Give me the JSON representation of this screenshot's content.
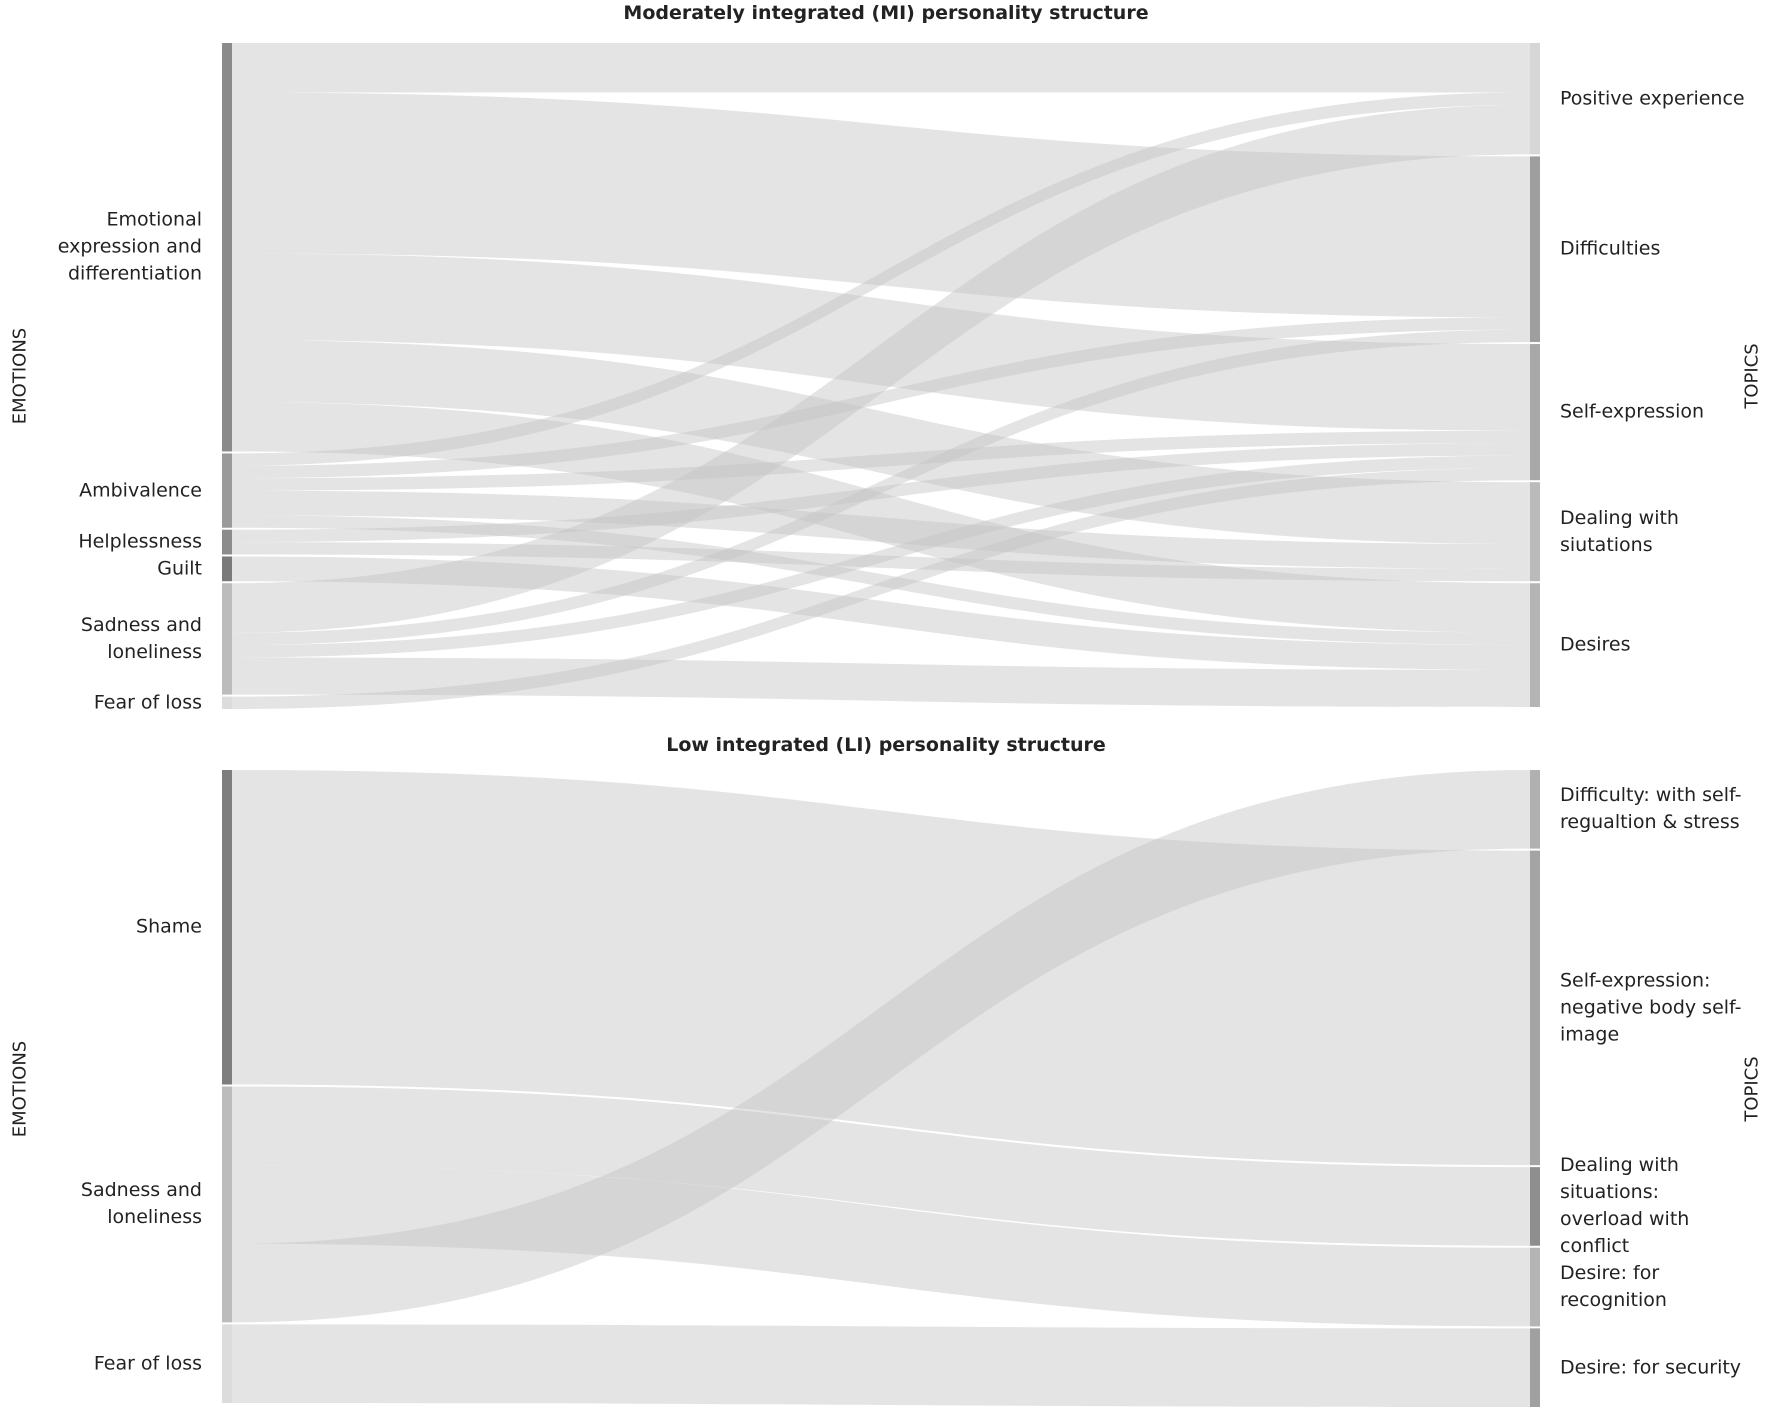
{
  "chart_data": [
    {
      "type": "sankey",
      "title": "Moderately integrated (MI) personality structure",
      "left_axis_label": "EMOTIONS",
      "right_axis_label": "TOPICS",
      "link_color": "#c4c4c4",
      "link_opacity": 0.45,
      "sources": [
        {
          "name": "Emotional expression and differentiation",
          "color": "#8a8a8a"
        },
        {
          "name": "Ambivalence",
          "color": "#9a9a9a"
        },
        {
          "name": "Helplessness",
          "color": "#8c8c8c"
        },
        {
          "name": "Guilt",
          "color": "#7a7a7a"
        },
        {
          "name": "Sadness and loneliness",
          "color": "#bcbcbc"
        },
        {
          "name": "Fear of loss",
          "color": "#dcdcdc"
        }
      ],
      "targets": [
        {
          "name": "Positive experience",
          "color": "#d6d6d6"
        },
        {
          "name": "Difficulties",
          "color": "#9e9e9e"
        },
        {
          "name": "Self-expression",
          "color": "#a8a8a8"
        },
        {
          "name": "Dealing with siutations",
          "color": "#bababa"
        },
        {
          "name": "Desires",
          "color": "#b4b4b4"
        }
      ],
      "links": [
        {
          "source": 0,
          "target": 0,
          "value": 4
        },
        {
          "source": 0,
          "target": 1,
          "value": 13
        },
        {
          "source": 0,
          "target": 2,
          "value": 7
        },
        {
          "source": 0,
          "target": 3,
          "value": 5
        },
        {
          "source": 0,
          "target": 4,
          "value": 4
        },
        {
          "source": 1,
          "target": 0,
          "value": 1
        },
        {
          "source": 1,
          "target": 1,
          "value": 1
        },
        {
          "source": 1,
          "target": 2,
          "value": 1
        },
        {
          "source": 1,
          "target": 3,
          "value": 2
        },
        {
          "source": 1,
          "target": 4,
          "value": 1
        },
        {
          "source": 2,
          "target": 2,
          "value": 1
        },
        {
          "source": 2,
          "target": 3,
          "value": 1
        },
        {
          "source": 3,
          "target": 4,
          "value": 2
        },
        {
          "source": 4,
          "target": 0,
          "value": 4
        },
        {
          "source": 4,
          "target": 1,
          "value": 1
        },
        {
          "source": 4,
          "target": 2,
          "value": 1
        },
        {
          "source": 4,
          "target": 4,
          "value": 3
        },
        {
          "source": 5,
          "target": 2,
          "value": 1
        }
      ]
    },
    {
      "type": "sankey",
      "title": "Low integrated (LI) personality structure",
      "left_axis_label": "EMOTIONS",
      "right_axis_label": "TOPICS",
      "link_color": "#c4c4c4",
      "link_opacity": 0.45,
      "sources": [
        {
          "name": "Shame",
          "color": "#7e7e7e"
        },
        {
          "name": "Sadness and loneliness",
          "color": "#bcbcbc"
        },
        {
          "name": "Fear of loss",
          "color": "#dcdcdc"
        }
      ],
      "targets": [
        {
          "name": "Difficulty: with self-regualtion & stress",
          "color": "#b0b0b0"
        },
        {
          "name": "Self-expression: negative body self-image",
          "color": "#a4a4a4"
        },
        {
          "name": "Dealing with situations: overload with conflict",
          "color": "#8e8e8e"
        },
        {
          "name": "Desire: for recognition",
          "color": "#b4b4b4"
        },
        {
          "name": "Desire: for security",
          "color": "#a0a0a0"
        }
      ],
      "links": [
        {
          "source": 0,
          "target": 1,
          "value": 4
        },
        {
          "source": 1,
          "target": 2,
          "value": 1
        },
        {
          "source": 1,
          "target": 3,
          "value": 1
        },
        {
          "source": 1,
          "target": 0,
          "value": 1
        },
        {
          "source": 2,
          "target": 4,
          "value": 1
        }
      ]
    }
  ]
}
